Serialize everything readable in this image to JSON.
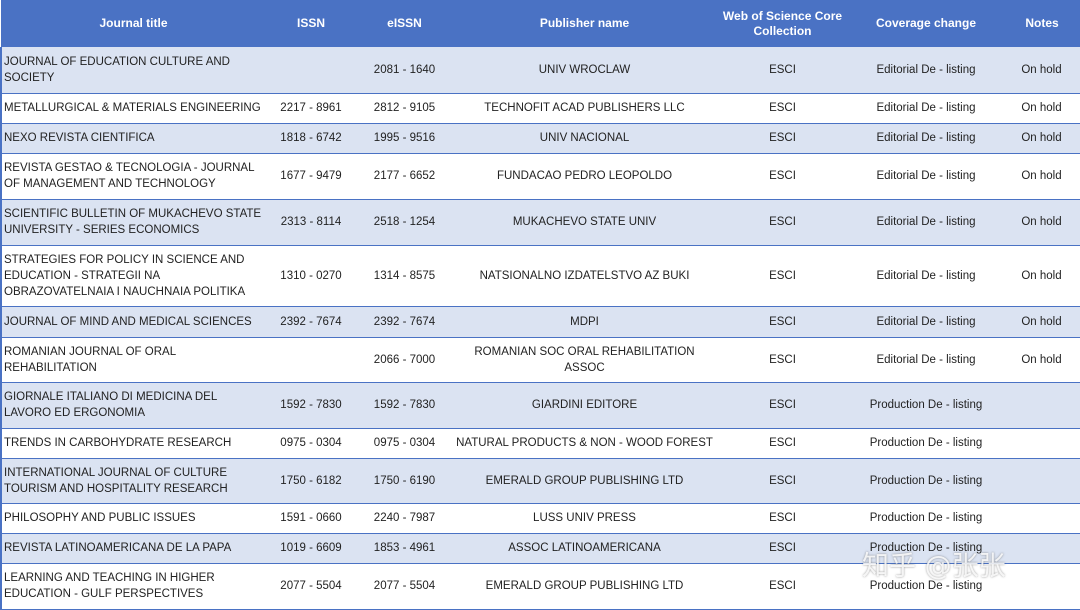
{
  "table": {
    "headers": [
      "Journal title",
      "ISSN",
      "eISSN",
      "Publisher name",
      "Web of Science Core Collection",
      "Coverage change",
      "Notes"
    ],
    "rows": [
      [
        "JOURNAL OF EDUCATION CULTURE AND SOCIETY",
        null,
        "2081 - 1640",
        "UNIV WROCLAW",
        "ESCI",
        "Editorial De - listing",
        "On hold"
      ],
      [
        "METALLURGICAL & MATERIALS ENGINEERING",
        "2217 - 8961",
        "2812 - 9105",
        "TECHNOFIT ACAD PUBLISHERS LLC",
        "ESCI",
        "Editorial De - listing",
        "On hold"
      ],
      [
        "NEXO REVISTA CIENTIFICA",
        "1818 - 6742",
        "1995 - 9516",
        "UNIV NACIONAL",
        "ESCI",
        "Editorial De - listing",
        "On hold"
      ],
      [
        "REVISTA GESTAO & TECNOLOGIA - JOURNAL OF MANAGEMENT AND TECHNOLOGY",
        "1677 - 9479",
        "2177 - 6652",
        "FUNDACAO PEDRO LEOPOLDO",
        "ESCI",
        "Editorial De - listing",
        "On hold"
      ],
      [
        "SCIENTIFIC BULLETIN OF MUKACHEVO STATE UNIVERSITY - SERIES ECONOMICS",
        "2313 - 8114",
        "2518 - 1254",
        "MUKACHEVO STATE UNIV",
        "ESCI",
        "Editorial De - listing",
        "On hold"
      ],
      [
        "STRATEGIES FOR POLICY IN SCIENCE AND EDUCATION - STRATEGII NA OBRAZOVATELNAIA I NAUCHNAIA POLITIKA",
        "1310 - 0270",
        "1314 - 8575",
        "NATSIONALNO IZDATELSTVO AZ BUKI",
        "ESCI",
        "Editorial De - listing",
        "On hold"
      ],
      [
        "JOURNAL OF MIND AND MEDICAL SCIENCES",
        "2392 - 7674",
        "2392 - 7674",
        "MDPI",
        "ESCI",
        "Editorial De - listing",
        "On hold"
      ],
      [
        "ROMANIAN JOURNAL OF ORAL REHABILITATION",
        null,
        "2066 - 7000",
        "ROMANIAN SOC ORAL REHABILITATION ASSOC",
        "ESCI",
        "Editorial De - listing",
        "On hold"
      ],
      [
        "GIORNALE ITALIANO DI MEDICINA DEL LAVORO ED ERGONOMIA",
        "1592 - 7830",
        "1592 - 7830",
        "GIARDINI EDITORE",
        "ESCI",
        "Production De - listing",
        null
      ],
      [
        "TRENDS IN CARBOHYDRATE RESEARCH",
        "0975 - 0304",
        "0975 - 0304",
        "NATURAL PRODUCTS & NON - WOOD FOREST",
        "ESCI",
        "Production De - listing",
        null
      ],
      [
        "INTERNATIONAL JOURNAL OF CULTURE TOURISM AND HOSPITALITY RESEARCH",
        "1750 - 6182",
        "1750 - 6190",
        "EMERALD GROUP PUBLISHING LTD",
        "ESCI",
        "Production De - listing",
        null
      ],
      [
        "PHILOSOPHY AND PUBLIC ISSUES",
        "1591 - 0660",
        "2240 - 7987",
        "LUSS UNIV PRESS",
        "ESCI",
        "Production De - listing",
        null
      ],
      [
        "REVISTA LATINOAMERICANA DE LA PAPA",
        "1019 - 6609",
        "1853 - 4961",
        "ASSOC LATINOAMERICANA",
        "ESCI",
        "Production De - listing",
        null
      ],
      [
        "LEARNING AND TEACHING IN HIGHER EDUCATION - GULF PERSPECTIVES",
        "2077 - 5504",
        "2077 - 5504",
        "EMERALD GROUP PUBLISHING LTD",
        "ESCI",
        "Production De - listing",
        null
      ]
    ]
  },
  "watermark": "知乎 @张张"
}
